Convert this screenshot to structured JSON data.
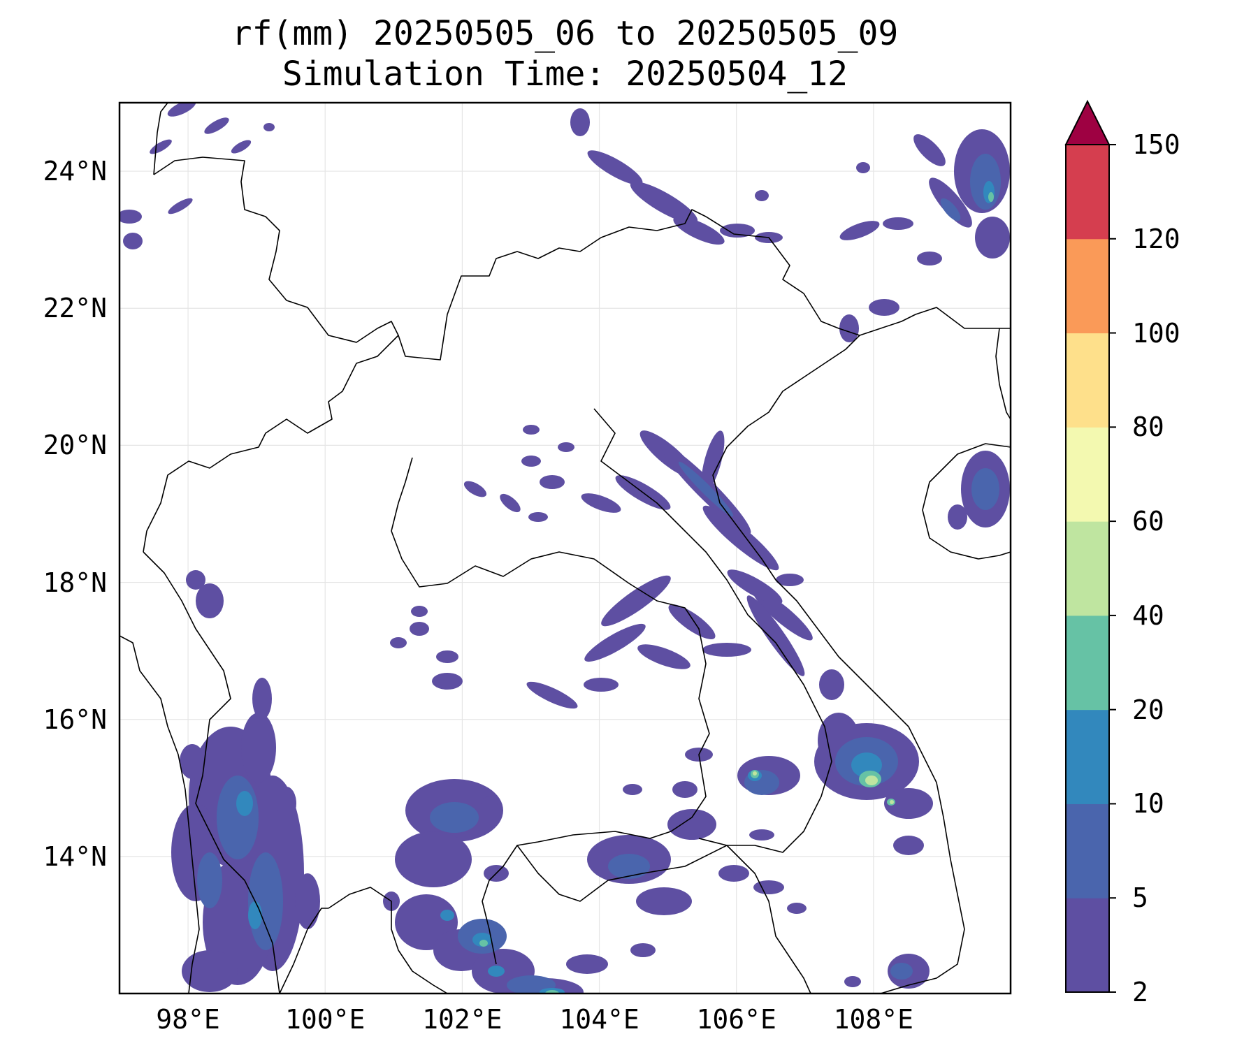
{
  "title": {
    "line1": "rf(mm) 20250505_06 to 20250505_09",
    "line2": "Simulation Time: 20250504_12"
  },
  "map": {
    "lon_range": [
      97,
      110
    ],
    "lat_range": [
      12,
      25
    ],
    "lat_ticks": [
      {
        "value": 24,
        "label": "24°N"
      },
      {
        "value": 22,
        "label": "22°N"
      },
      {
        "value": 20,
        "label": "20°N"
      },
      {
        "value": 18,
        "label": "18°N"
      },
      {
        "value": 16,
        "label": "16°N"
      },
      {
        "value": 14,
        "label": "14°N"
      }
    ],
    "lon_ticks": [
      {
        "value": 98,
        "label": "98°E"
      },
      {
        "value": 100,
        "label": "100°E"
      },
      {
        "value": 102,
        "label": "102°E"
      },
      {
        "value": 104,
        "label": "104°E"
      },
      {
        "value": 106,
        "label": "106°E"
      },
      {
        "value": 108,
        "label": "108°E"
      }
    ],
    "gridlines": true
  },
  "colorbar": {
    "levels": [
      "2",
      "5",
      "10",
      "20",
      "40",
      "60",
      "80",
      "100",
      "120",
      "150"
    ],
    "colors": [
      "#5e4fa2",
      "#4a65ad",
      "#3288bd",
      "#66c2a5",
      "#bfe5a0",
      "#f3f9b0",
      "#fee08b",
      "#fa9a58",
      "#d53e4f"
    ],
    "extend_color": "#9e0142",
    "extend": "max"
  }
}
